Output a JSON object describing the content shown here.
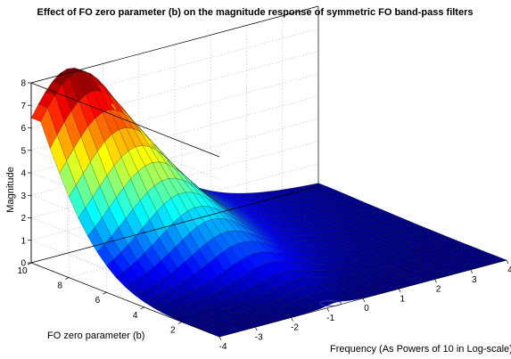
{
  "chart_data": {
    "type": "surface",
    "title": "Effect of FO zero parameter (b) on the magnitude response of symmetric FO band-pass filters",
    "xlabel": "Frequency (As Powers of 10 in Log-scale)",
    "ylabel": "FO zero parameter (b)",
    "zlabel": "Magnitude",
    "xlim": [
      -4,
      4
    ],
    "ylim": [
      0,
      10
    ],
    "zlim": [
      0,
      8
    ],
    "x_ticks": [
      "-4",
      "-3",
      "-2",
      "-1",
      "0",
      "1",
      "2",
      "3",
      "4"
    ],
    "y_ticks": [
      "2",
      "4",
      "6",
      "8",
      "10"
    ],
    "z_ticks": [
      "0",
      "1",
      "2",
      "3",
      "4",
      "5",
      "6",
      "7",
      "8"
    ],
    "grid": true,
    "colormap": "jet",
    "b_values": [
      0.5,
      1.5,
      2.5,
      3.5,
      4.5,
      5.5,
      6.5,
      7.5,
      8.5,
      9.5
    ],
    "peak_log_frequency": [
      -0.75,
      -0.75,
      -0.9,
      -1.15,
      -1.45,
      -1.75,
      -2.05,
      -2.35,
      -2.65,
      -2.95
    ],
    "peak_magnitude": [
      0.15,
      0.35,
      0.75,
      1.35,
      2.1,
      3.0,
      4.05,
      5.3,
      6.7,
      8.2
    ],
    "peak_width_decades": [
      0.25,
      0.55,
      0.75,
      0.95,
      1.05,
      1.15,
      1.25,
      1.32,
      1.4,
      1.45
    ]
  }
}
